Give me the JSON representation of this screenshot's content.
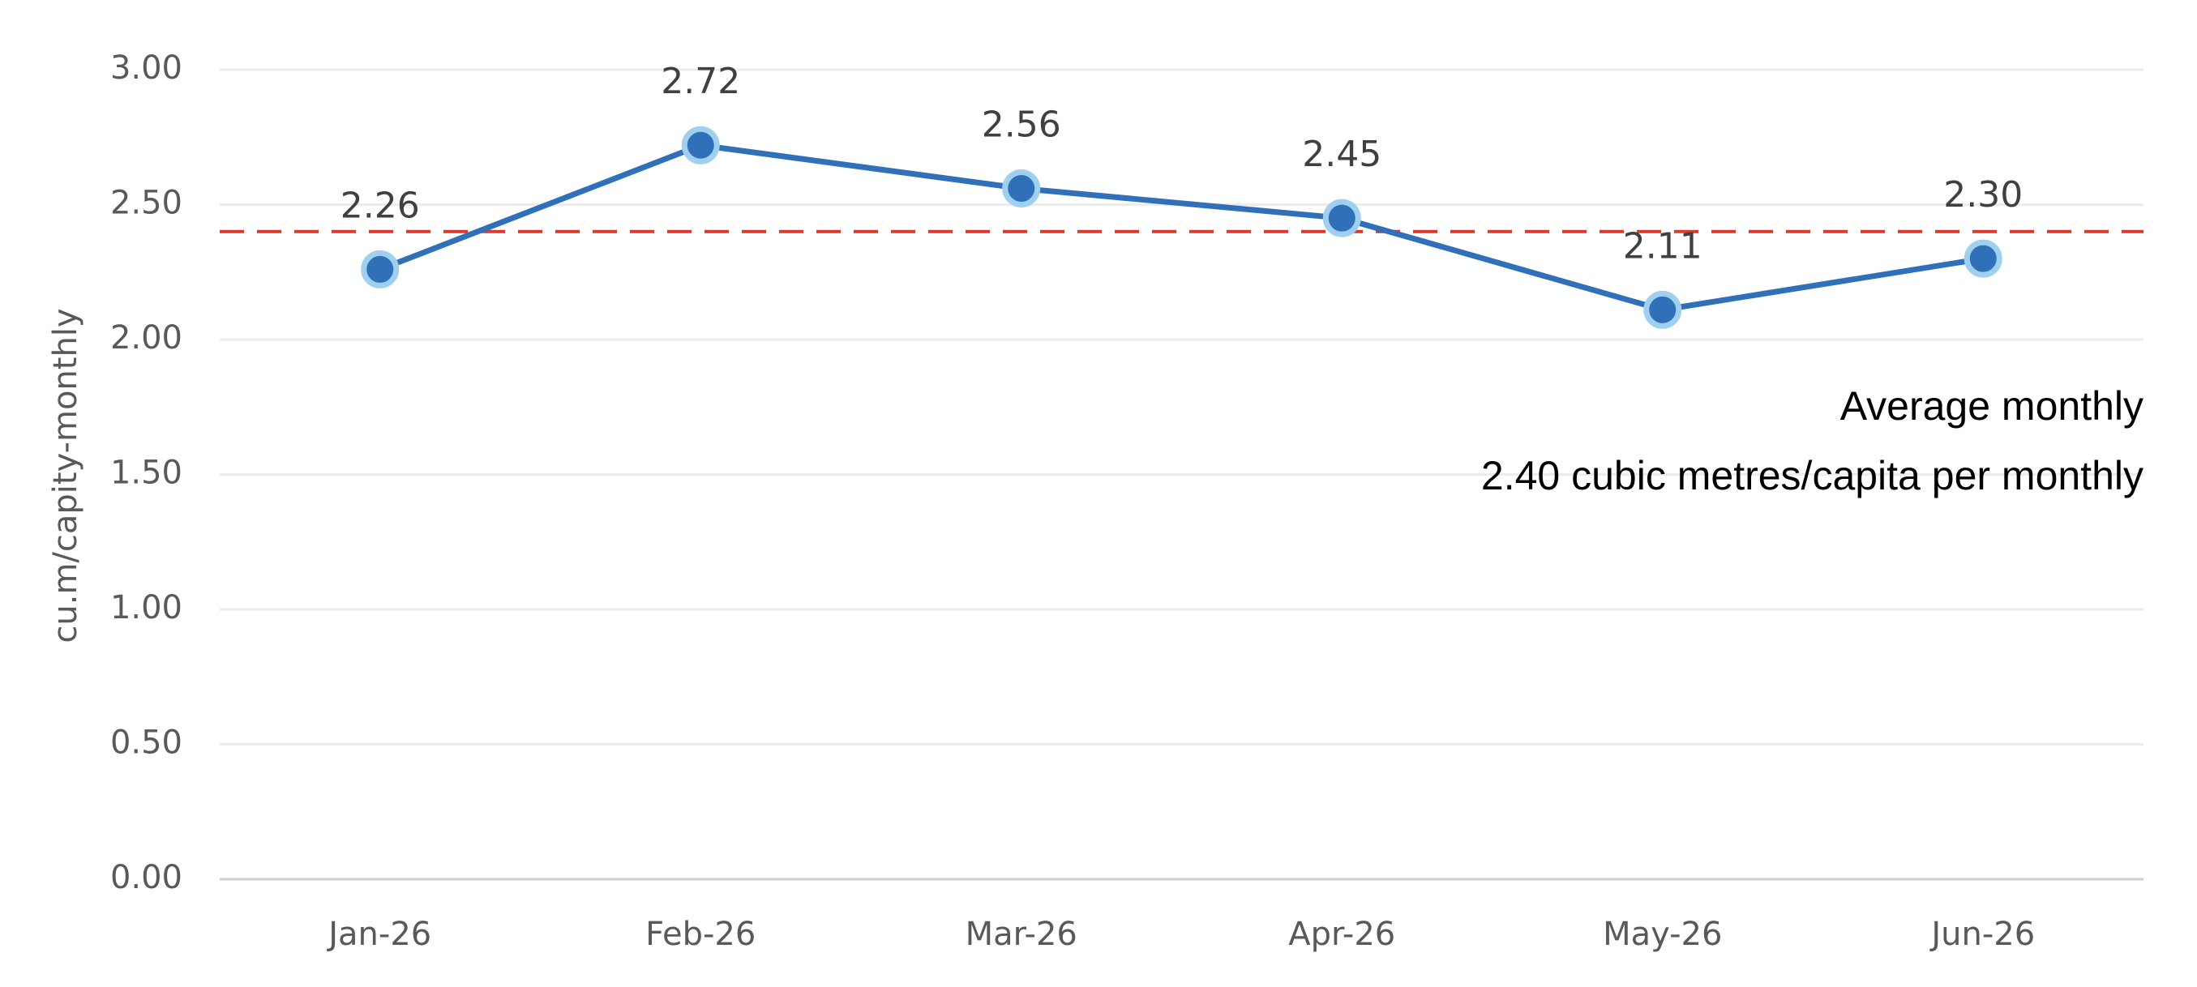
{
  "chart_data": {
    "type": "line",
    "ylabel": "cu.m/capity-monthly",
    "categories": [
      "Jan-26",
      "Feb-26",
      "Mar-26",
      "Apr-26",
      "May-26",
      "Jun-26"
    ],
    "series": [
      {
        "color": "#3070b8",
        "values": [
          2.26,
          2.72,
          2.56,
          2.45,
          2.11,
          2.3
        ],
        "value_labels": [
          "2.26",
          "2.72",
          "2.56",
          "2.45",
          "2.11",
          "2.30"
        ]
      }
    ],
    "ylim": [
      0,
      3
    ],
    "yticks": [
      {
        "value": 0,
        "label": "0.00"
      },
      {
        "value": 0.5,
        "label": "0.50"
      },
      {
        "value": 1,
        "label": "1.00"
      },
      {
        "value": 1.5,
        "label": "1.50"
      },
      {
        "value": 2,
        "label": "2.00"
      },
      {
        "value": 2.5,
        "label": "2.50"
      },
      {
        "value": 3,
        "label": "3.00"
      }
    ],
    "grid": true,
    "average": {
      "value": 2.4,
      "color": "#d93a2b",
      "annotation": [
        "Average monthly",
        "2.40 cubic metres/capita per monthly"
      ]
    }
  }
}
